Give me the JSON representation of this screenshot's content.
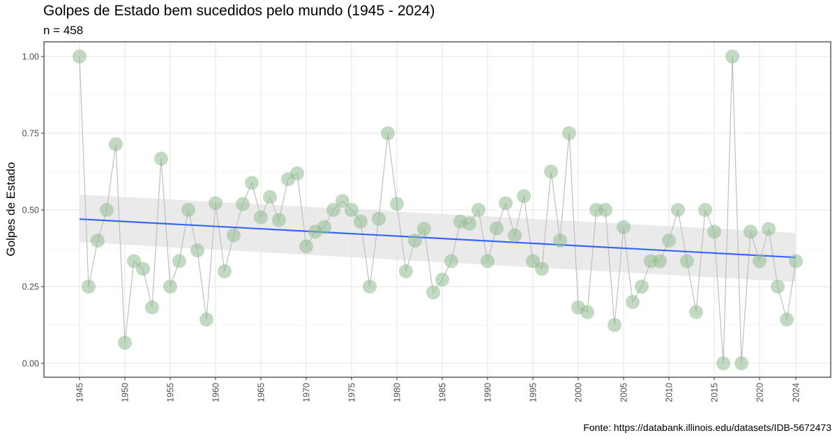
{
  "chart_data": {
    "type": "scatter",
    "title": "Golpes de Estado bem sucedidos pelo mundo (1945 - 2024)",
    "subtitle": "n = 458",
    "caption": "Fonte: https://databank.illinois.edu/datasets/IDB-5672473",
    "xlabel": "",
    "ylabel": "Golpes de Estado",
    "xlim": [
      1945,
      2024
    ],
    "ylim": [
      0,
      1
    ],
    "x_ticks": [
      1945,
      1950,
      1955,
      1960,
      1965,
      1970,
      1975,
      1980,
      1985,
      1990,
      1995,
      2000,
      2005,
      2010,
      2015,
      2020,
      2024
    ],
    "y_ticks": [
      0,
      0.25,
      0.5,
      0.75,
      1
    ],
    "y_tick_labels": [
      "0.00",
      "0.25",
      "0.50",
      "0.75",
      "1.00"
    ],
    "grid": true,
    "connect_points": true,
    "trend": {
      "type": "linear",
      "start": [
        1945,
        0.47
      ],
      "end": [
        2024,
        0.345
      ],
      "ci_lower_start": 0.395,
      "ci_upper_start": 0.55,
      "ci_lower_end": 0.265,
      "ci_upper_end": 0.425
    },
    "x": [
      1945,
      1946,
      1947,
      1948,
      1949,
      1950,
      1951,
      1952,
      1953,
      1954,
      1955,
      1956,
      1957,
      1958,
      1959,
      1960,
      1961,
      1962,
      1963,
      1964,
      1965,
      1966,
      1967,
      1968,
      1969,
      1970,
      1971,
      1972,
      1973,
      1974,
      1975,
      1976,
      1977,
      1978,
      1979,
      1980,
      1981,
      1982,
      1983,
      1984,
      1985,
      1986,
      1987,
      1988,
      1989,
      1990,
      1991,
      1992,
      1993,
      1994,
      1995,
      1996,
      1997,
      1998,
      1999,
      2000,
      2001,
      2002,
      2003,
      2004,
      2005,
      2006,
      2007,
      2008,
      2009,
      2010,
      2011,
      2012,
      2013,
      2014,
      2015,
      2016,
      2017,
      2018,
      2019,
      2020,
      2021,
      2022,
      2023,
      2024
    ],
    "y": [
      1.0,
      0.25,
      0.4,
      0.5,
      0.714,
      0.067,
      0.333,
      0.308,
      0.182,
      0.667,
      0.25,
      0.333,
      0.5,
      0.368,
      0.143,
      0.522,
      0.3,
      0.417,
      0.519,
      0.588,
      0.476,
      0.542,
      0.467,
      0.6,
      0.619,
      0.381,
      0.429,
      0.444,
      0.5,
      0.529,
      0.5,
      0.462,
      0.25,
      0.471,
      0.75,
      0.52,
      0.3,
      0.4,
      0.438,
      0.231,
      0.273,
      0.333,
      0.462,
      0.455,
      0.5,
      0.333,
      0.44,
      0.522,
      0.417,
      0.545,
      0.333,
      0.308,
      0.625,
      0.4,
      0.75,
      0.182,
      0.167,
      0.5,
      0.5,
      0.125,
      0.444,
      0.2,
      0.25,
      0.333,
      0.333,
      0.4,
      0.5,
      0.333,
      0.167,
      0.5,
      0.429,
      0.0,
      1.0,
      0.0,
      0.429,
      0.333,
      0.438,
      0.25,
      0.143,
      0.333
    ],
    "colors": {
      "point": "#8fbc8f",
      "line": "#bfbfbf",
      "trend": "#3366ff",
      "ribbon": "#e6e6e6",
      "grid_major": "#e4e4e4",
      "grid_minor": "#f3f3f3"
    }
  }
}
